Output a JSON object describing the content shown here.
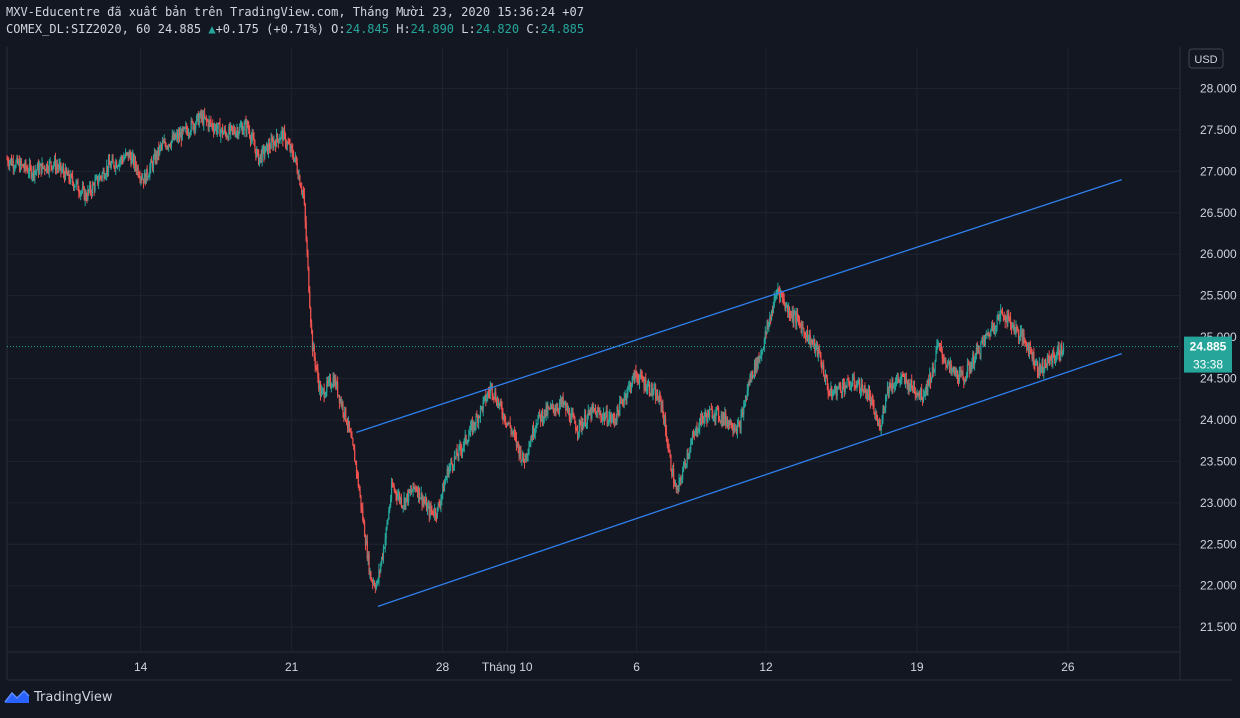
{
  "header": {
    "publisher_line": "MXV-Educentre đã xuất bản trên TradingView.com, Tháng Mười 23, 2020 15:36:24 +07",
    "symbol": "COMEX_DL:SIZ2020, 60",
    "last": "24.885",
    "change_arrow": "▲",
    "change": "+0.175 (+0.71%)",
    "o_label": "O:",
    "o_value": "24.845",
    "h_label": "H:",
    "h_value": "24.890",
    "l_label": "L:",
    "l_value": "24.820",
    "c_label": "C:",
    "c_value": "24.885"
  },
  "footer": {
    "brand": "TradingView"
  },
  "colors": {
    "background": "#131722",
    "grid": "#1f2330",
    "up": "#26a69a",
    "down": "#ef5350",
    "trendline": "#2962ff",
    "price_tag": "#26a69a"
  },
  "chart_data": {
    "type": "candlestick",
    "currency": "USD",
    "current_price": "24.885",
    "countdown": "33:38",
    "ylim": [
      21.2,
      28.5
    ],
    "y_ticks": [
      28.0,
      27.5,
      27.0,
      26.5,
      26.0,
      25.5,
      25.0,
      24.5,
      24.0,
      23.5,
      23.0,
      22.5,
      22.0,
      21.5
    ],
    "y_tick_labels": [
      "28.000",
      "27.500",
      "27.000",
      "26.500",
      "26.000",
      "25.500",
      "25.000",
      "24.500",
      "24.000",
      "23.500",
      "23.000",
      "22.500",
      "22.000",
      "21.500"
    ],
    "x_ticks": [
      {
        "label": "14",
        "day": 14
      },
      {
        "label": "21",
        "day": 21
      },
      {
        "label": "28",
        "day": 28
      },
      {
        "label": "Tháng 10",
        "day": 31
      },
      {
        "label": "6",
        "day": 37
      },
      {
        "label": "12",
        "day": 43
      },
      {
        "label": "19",
        "day": 50
      },
      {
        "label": "26",
        "day": 57
      }
    ],
    "xlim_days": [
      7.8,
      62.2
    ],
    "path_points": [
      [
        7.8,
        27.15
      ],
      [
        9.0,
        27.0
      ],
      [
        10.0,
        27.1
      ],
      [
        11.0,
        26.85
      ],
      [
        11.5,
        26.7
      ],
      [
        12.5,
        27.05
      ],
      [
        13.5,
        27.2
      ],
      [
        14.2,
        26.9
      ],
      [
        15.0,
        27.3
      ],
      [
        16.0,
        27.45
      ],
      [
        16.8,
        27.65
      ],
      [
        18.0,
        27.45
      ],
      [
        19.0,
        27.55
      ],
      [
        19.5,
        27.15
      ],
      [
        20.0,
        27.3
      ],
      [
        20.6,
        27.45
      ],
      [
        21.2,
        27.15
      ],
      [
        21.6,
        26.7
      ],
      [
        22.0,
        24.9
      ],
      [
        22.4,
        24.3
      ],
      [
        23.0,
        24.5
      ],
      [
        23.6,
        24.0
      ],
      [
        24.0,
        23.5
      ],
      [
        24.3,
        22.9
      ],
      [
        24.7,
        22.1
      ],
      [
        25.0,
        22.0
      ],
      [
        25.4,
        22.6
      ],
      [
        25.7,
        23.2
      ],
      [
        26.2,
        23.0
      ],
      [
        26.8,
        23.2
      ],
      [
        27.4,
        22.9
      ],
      [
        27.8,
        22.9
      ],
      [
        28.3,
        23.4
      ],
      [
        29.0,
        23.7
      ],
      [
        29.6,
        24.0
      ],
      [
        30.3,
        24.4
      ],
      [
        30.8,
        24.1
      ],
      [
        31.2,
        23.9
      ],
      [
        31.8,
        23.5
      ],
      [
        32.4,
        24.0
      ],
      [
        32.9,
        24.1
      ],
      [
        33.6,
        24.2
      ],
      [
        34.3,
        23.9
      ],
      [
        35.0,
        24.1
      ],
      [
        36.0,
        24.0
      ],
      [
        36.5,
        24.3
      ],
      [
        37.0,
        24.55
      ],
      [
        37.6,
        24.4
      ],
      [
        38.2,
        24.2
      ],
      [
        38.6,
        23.5
      ],
      [
        38.9,
        23.1
      ],
      [
        39.4,
        23.6
      ],
      [
        40.0,
        24.0
      ],
      [
        40.6,
        24.1
      ],
      [
        41.2,
        24.0
      ],
      [
        41.8,
        23.9
      ],
      [
        42.3,
        24.5
      ],
      [
        42.8,
        24.8
      ],
      [
        43.3,
        25.3
      ],
      [
        43.6,
        25.6
      ],
      [
        44.0,
        25.35
      ],
      [
        44.5,
        25.2
      ],
      [
        45.0,
        25.0
      ],
      [
        45.5,
        24.8
      ],
      [
        46.0,
        24.3
      ],
      [
        46.5,
        24.4
      ],
      [
        47.2,
        24.45
      ],
      [
        47.8,
        24.3
      ],
      [
        48.3,
        23.9
      ],
      [
        48.7,
        24.4
      ],
      [
        49.3,
        24.5
      ],
      [
        49.8,
        24.4
      ],
      [
        50.3,
        24.3
      ],
      [
        50.8,
        24.6
      ],
      [
        51.0,
        24.9
      ],
      [
        51.6,
        24.6
      ],
      [
        52.2,
        24.5
      ],
      [
        52.8,
        24.8
      ],
      [
        53.5,
        25.1
      ],
      [
        54.0,
        25.3
      ],
      [
        54.6,
        25.1
      ],
      [
        55.2,
        24.9
      ],
      [
        55.7,
        24.6
      ],
      [
        56.3,
        24.75
      ],
      [
        56.8,
        24.85
      ]
    ],
    "trendlines": [
      {
        "name": "upper-channel",
        "from": [
          24.0,
          23.85
        ],
        "to": [
          59.5,
          26.9
        ]
      },
      {
        "name": "lower-channel",
        "from": [
          25.0,
          21.75
        ],
        "to": [
          59.5,
          24.8
        ]
      }
    ]
  }
}
